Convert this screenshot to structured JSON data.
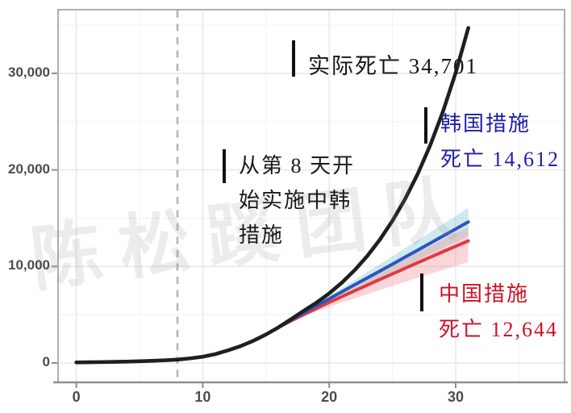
{
  "watermark": "陈松蹊团队",
  "annotations": {
    "actual_label": "实际死亡 34,701",
    "korea_line1": "韩国措施",
    "korea_line2": "死亡 14,612",
    "china_line1": "中国措施",
    "china_line2": "死亡 12,644",
    "measures_line1": "从第 8 天开",
    "measures_line2": "始实施中韩",
    "measures_line3": "措施"
  },
  "colors": {
    "actual_text": "#161616",
    "korea_text": "#1e1ea8",
    "china_text": "#cd1225",
    "measures_text": "#1a1a1a",
    "dashed_line": "#b5b5b5",
    "grid_major": "#e9e9e9",
    "grid_minor": "#f4f4f4",
    "panel_border": "#a6a6a6",
    "axis_tick": "#8c8c8c"
  },
  "chart_data": {
    "type": "line",
    "title": "",
    "xlabel": "",
    "ylabel": "",
    "x_unit": "day",
    "days": [
      0,
      1,
      2,
      3,
      4,
      5,
      6,
      7,
      8,
      9,
      10,
      11,
      12,
      13,
      14,
      15,
      16,
      17,
      18,
      19,
      20,
      21,
      22,
      23,
      24,
      25,
      26,
      27,
      28,
      29,
      30,
      31
    ],
    "series": [
      {
        "name": "实际死亡 (actual deaths)",
        "color": "#1f1f1f",
        "final_value": 34701,
        "values": [
          60,
          75,
          93,
          116,
          145,
          181,
          226,
          282,
          350,
          480,
          650,
          920,
          1312,
          1750,
          2300,
          2950,
          3700,
          4550,
          5420,
          6252,
          7211,
          8318,
          9594,
          11066,
          12764,
          14723,
          16982,
          19588,
          22593,
          26060,
          30059,
          34701
        ]
      },
      {
        "name": "韩国措施 死亡 (deaths under Korea measures)",
        "color": "#2c55bd",
        "final_value": 14612,
        "values": [
          60,
          75,
          93,
          116,
          145,
          181,
          226,
          282,
          350,
          480,
          650,
          920,
          1312,
          1750,
          2300,
          2950,
          3700,
          4450,
          5200,
          5930,
          6650,
          7370,
          8090,
          8800,
          9510,
          10230,
          10960,
          11690,
          12420,
          13150,
          13880,
          14612
        ],
        "band": {
          "start_day": 17,
          "upper_end": 16050,
          "lower_end": 13150,
          "color": "#7fc8d2",
          "opacity": 0.38
        }
      },
      {
        "name": "中国措施 死亡 (deaths under China measures)",
        "color": "#e03a40",
        "final_value": 12644,
        "values": [
          60,
          75,
          93,
          116,
          145,
          181,
          226,
          282,
          350,
          480,
          650,
          920,
          1312,
          1750,
          2300,
          2950,
          3700,
          4380,
          5020,
          5650,
          6280,
          6880,
          7470,
          8060,
          8650,
          9230,
          9810,
          10390,
          10960,
          11530,
          12090,
          12644
        ],
        "band": {
          "start_day": 17,
          "upper_end": 14100,
          "lower_end": 10450,
          "color": "#f08a92",
          "opacity": 0.35
        }
      }
    ],
    "intervention_day": 8,
    "x_ticks": [
      {
        "v": 0,
        "label": "0"
      },
      {
        "v": 10,
        "label": "10"
      },
      {
        "v": 20,
        "label": "20"
      },
      {
        "v": 30,
        "label": "30"
      }
    ],
    "y_ticks": [
      {
        "v": 0,
        "label": "0"
      },
      {
        "v": 10000,
        "label": "10,000"
      },
      {
        "v": 20000,
        "label": "20,000"
      },
      {
        "v": 30000,
        "label": "30,000"
      }
    ],
    "x_minor": [
      5,
      15,
      25,
      35
    ],
    "y_minor": [
      5000,
      15000,
      25000,
      35000
    ],
    "xlim": [
      0,
      38.6
    ],
    "ylim": [
      -2000,
      36600
    ],
    "grid": true,
    "legend_position": "annotated-on-plot"
  }
}
